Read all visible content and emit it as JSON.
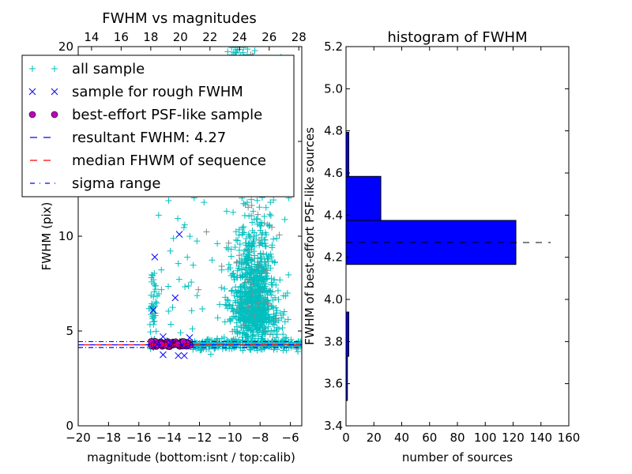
{
  "chart_data": [
    {
      "type": "scatter",
      "title": "FWHM vs magnitudes",
      "xlabel": "magnitude (bottom:isnt / top:calib)",
      "ylabel": "FWHM (pix)",
      "xlim": [
        -20,
        -5.25
      ],
      "ylim": [
        0,
        20
      ],
      "xticks": [
        -20,
        -18,
        -16,
        -14,
        -12,
        -10,
        -8,
        -6
      ],
      "xtick_labels": [
        "−20",
        "−18",
        "−16",
        "−14",
        "−12",
        "−10",
        "−8",
        "−6"
      ],
      "yticks": [
        0,
        5,
        10,
        15,
        20
      ],
      "ytick_labels": [
        "0",
        "5",
        "10",
        "15",
        "20"
      ],
      "top_xlim": [
        13.1,
        28.2
      ],
      "top_xticks": [
        14,
        16,
        18,
        20,
        22,
        24,
        26,
        28
      ],
      "top_xtick_labels": [
        "14",
        "16",
        "18",
        "20",
        "22",
        "24",
        "26",
        "28"
      ],
      "legend": {
        "placement": "upper-left",
        "entries": [
          {
            "label": "all sample",
            "marker": "+",
            "color": "#00BFBF"
          },
          {
            "label": "sample for rough FWHM",
            "marker": "x",
            "color": "#0000FF"
          },
          {
            "label": "best-effort PSF-like sample",
            "marker": "o",
            "color": "#BF00BF"
          },
          {
            "label": "resultant FWHM: 4.27",
            "line": "dashed",
            "color": "#0000FF"
          },
          {
            "label": "median FHWM of sequence",
            "line": "dashed",
            "color": "#FF0000"
          },
          {
            "label": "sigma range",
            "line": "dashdot",
            "color": "#0000FF"
          }
        ]
      },
      "all_sample_clusters": [
        {
          "mag_mean": -8.4,
          "mag_sd": 0.75,
          "fwhm_mean": 6.8,
          "fwhm_sd": 2.6,
          "n": 900
        },
        {
          "mag_uniform": [
            -12.6,
            -5.3
          ],
          "fwhm_mean": 4.3,
          "fwhm_sd": 0.15,
          "n": 260
        },
        {
          "mag_mean": -15.05,
          "mag_sd": 0.12,
          "fwhm_uniform": [
            4.4,
            8.2
          ],
          "n": 40
        },
        {
          "mag_uniform": [
            -15.3,
            -6
          ],
          "fwhm_uniform": [
            4.5,
            19.5
          ],
          "n": 130
        },
        {
          "mag_uniform": [
            -10.2,
            -8.3
          ],
          "fwhm_uniform": [
            19.3,
            20
          ],
          "n": 25
        },
        {
          "mag_uniform": [
            -15.3,
            -12.6
          ],
          "fwhm_mean": 4.3,
          "fwhm_sd": 0.1,
          "n": 60
        }
      ],
      "rough_sample": [
        [
          -13.33,
          10.1
        ],
        [
          -14.95,
          8.9
        ],
        [
          -15.05,
          6.1
        ],
        [
          -13.6,
          6.75
        ],
        [
          -14.4,
          4.7
        ],
        [
          -14.4,
          3.75
        ],
        [
          -13.4,
          3.7
        ],
        [
          -13.0,
          3.7
        ],
        [
          -12.65,
          4.65
        ],
        [
          -13.9,
          4.4
        ],
        [
          -14.8,
          4.3
        ],
        [
          -12.9,
          4.2
        ]
      ],
      "psf_sample_range": {
        "mag": [
          -15.2,
          -12.6
        ],
        "fwhm": [
          4.18,
          4.45
        ],
        "n": 70
      },
      "resultant_fwhm": 4.27,
      "median_fwhm": 4.27,
      "sigma_range": [
        4.13,
        4.44
      ],
      "colors": {
        "all": "#00BFBF",
        "rough": "#0000FF",
        "psf": "#BF00BF",
        "resultant": "#0000FF",
        "median": "#FF0000",
        "sigma": "#0000FF"
      }
    },
    {
      "type": "bar",
      "orientation": "horizontal",
      "title": "histogram of FWHM",
      "xlabel": "number of sources",
      "ylabel": "FWHM of best-effort PSF-like sources",
      "xlim": [
        0,
        160
      ],
      "ylim": [
        3.4,
        5.2
      ],
      "xticks": [
        0,
        20,
        40,
        60,
        80,
        100,
        120,
        140,
        160
      ],
      "xtick_labels": [
        "0",
        "20",
        "40",
        "60",
        "80",
        "100",
        "120",
        "140",
        "160"
      ],
      "yticks": [
        3.4,
        3.6,
        3.8,
        4.0,
        4.2,
        4.4,
        4.6,
        4.8,
        5.0,
        5.2
      ],
      "ytick_labels": [
        "3.4",
        "3.6",
        "3.8",
        "4.0",
        "4.2",
        "4.4",
        "4.6",
        "4.8",
        "5.0",
        "5.2"
      ],
      "bin_edges": [
        3.52,
        3.73,
        3.94,
        4.166,
        4.375,
        4.584,
        4.793
      ],
      "counts": [
        1,
        2,
        0,
        122,
        25,
        2
      ],
      "reference_line": {
        "value": 4.27,
        "extent": [
          0,
          147
        ]
      },
      "color": "#0000FF"
    }
  ]
}
